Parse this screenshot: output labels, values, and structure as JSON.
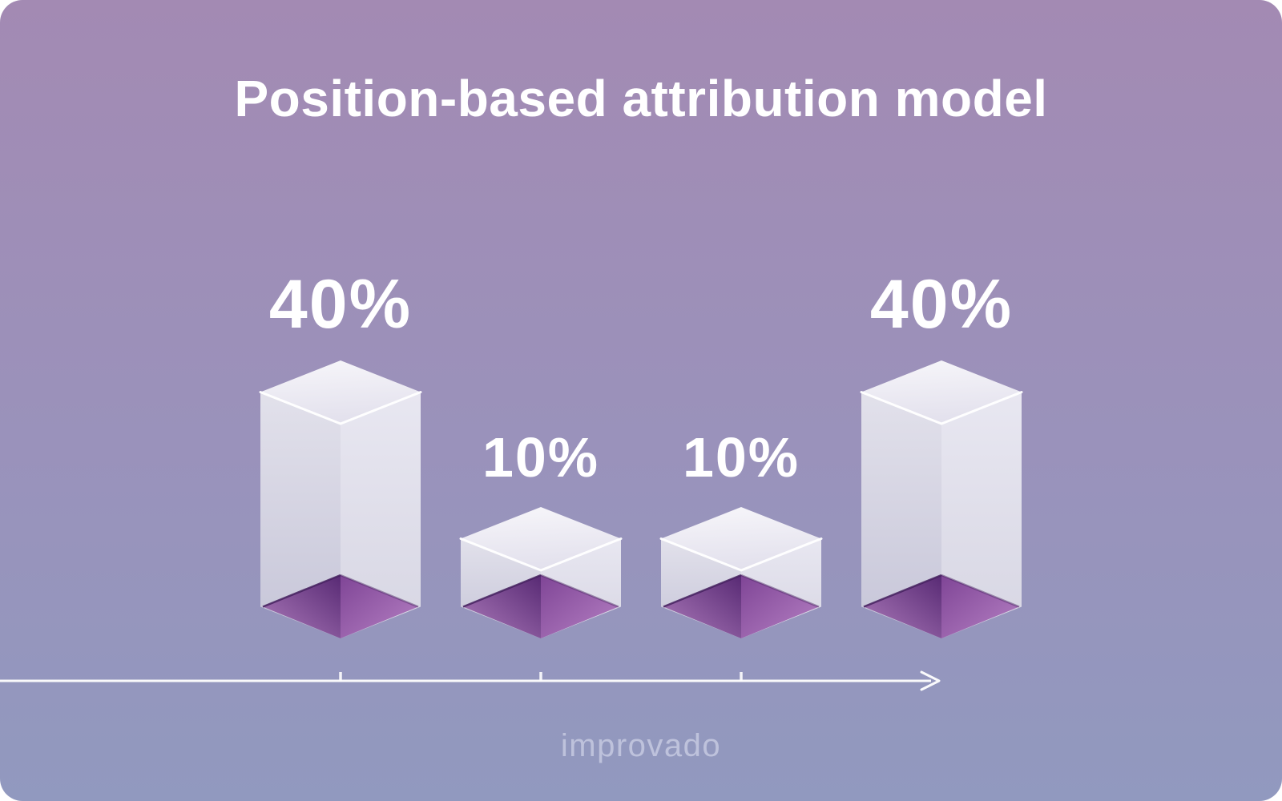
{
  "watermark": "improvado",
  "chart_data": {
    "type": "bar",
    "title": "Position-based attribution model",
    "values": [
      40,
      10,
      10,
      40
    ],
    "data_labels": [
      "40%",
      "10%",
      "10%",
      "40%"
    ],
    "value_unit": "%",
    "xlabel": "",
    "ylabel": "",
    "legend": {
      "visible": false
    },
    "bar_style": "isometric-3d-prism-with-purple-base",
    "x_axis": {
      "style": "timeline-arrow-right",
      "line_visible": true,
      "tick_count": 3,
      "tick_labels": []
    },
    "gridlines": false
  },
  "colors": {
    "bg_top": "#a38ab3",
    "bg_mid": "#9a92bb",
    "bg_bottom": "#9199bf",
    "title": "#ffffff",
    "data_label": "#ffffff",
    "axis": "#ffffff",
    "watermark": "rgba(244,246,255,0.45)",
    "prism_top_start": "#f7f6fa",
    "prism_top_end": "#e3e1ed",
    "prism_left_start": "#e2e1eb",
    "prism_left_end": "#c6c5d8",
    "prism_right_start": "#e8e7f1",
    "prism_right_end": "#d7d6e3",
    "base_left_start": "#582a74",
    "base_left_end": "#ae7cbc",
    "base_right_start": "#7f4596",
    "base_right_end": "#b681c4",
    "base_edge": "#44205e",
    "top_edge_highlight": "#ffffff"
  }
}
